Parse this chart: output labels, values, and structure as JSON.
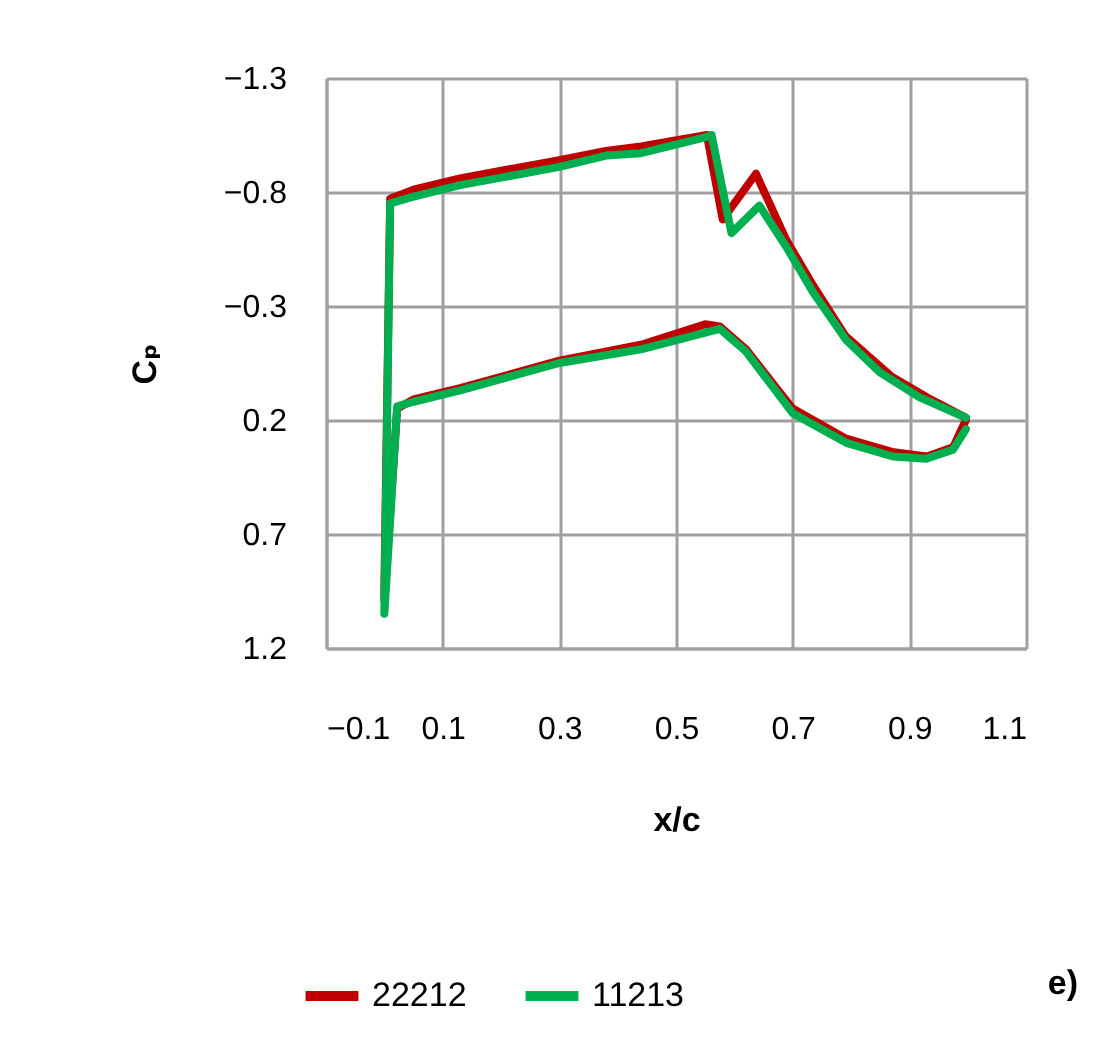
{
  "chart_data": {
    "type": "line",
    "xlabel": "x/c",
    "ylabel": "Cₚ",
    "xlim": [
      -0.1,
      1.1
    ],
    "xticks": [
      -0.1,
      0.1,
      0.3,
      0.5,
      0.7,
      0.9,
      1.1
    ],
    "ylim": [
      1.2,
      -1.3
    ],
    "yticks": [
      -1.3,
      -0.8,
      -0.3,
      0.2,
      0.7,
      1.2
    ],
    "grid": true,
    "legend": "bottom",
    "line_style": "solid",
    "marker": "none",
    "annotations": [
      "e)"
    ],
    "series": [
      {
        "name": "22212",
        "color": "#c00000",
        "x": [
          0.997,
          0.93,
          0.87,
          0.79,
          0.735,
          0.689,
          0.637,
          0.58,
          0.553,
          0.44,
          0.38,
          0.3,
          0.13,
          0.05,
          0.01,
          0.0,
          0.0,
          0.022,
          0.05,
          0.13,
          0.3,
          0.44,
          0.55,
          0.575,
          0.62,
          0.7,
          0.79,
          0.87,
          0.93,
          0.975,
          0.997
        ],
        "values": [
          0.19,
          0.1,
          0.01,
          -0.17,
          -0.39,
          -0.59,
          -0.88,
          -0.68,
          -1.05,
          -1.0,
          -0.98,
          -0.94,
          -0.86,
          -0.81,
          -0.77,
          0.95,
          0.99,
          0.15,
          0.11,
          0.06,
          -0.06,
          -0.13,
          -0.22,
          -0.21,
          -0.11,
          0.15,
          0.28,
          0.34,
          0.36,
          0.32,
          0.2
        ]
      },
      {
        "name": "11213",
        "color": "#00b050",
        "x": [
          0.997,
          0.917,
          0.849,
          0.792,
          0.735,
          0.689,
          0.643,
          0.595,
          0.561,
          0.55,
          0.44,
          0.38,
          0.3,
          0.13,
          0.05,
          0.01,
          0.0,
          0.022,
          0.05,
          0.13,
          0.3,
          0.44,
          0.575,
          0.62,
          0.7,
          0.792,
          0.872,
          0.929,
          0.975,
          0.997
        ],
        "values": [
          0.19,
          0.1,
          -0.01,
          -0.15,
          -0.36,
          -0.56,
          -0.74,
          -0.62,
          -1.05,
          -1.04,
          -0.97,
          -0.96,
          -0.91,
          -0.83,
          -0.78,
          -0.75,
          1.05,
          0.14,
          0.12,
          0.07,
          -0.05,
          -0.11,
          -0.2,
          -0.1,
          0.17,
          0.3,
          0.36,
          0.37,
          0.33,
          0.24
        ]
      }
    ]
  }
}
